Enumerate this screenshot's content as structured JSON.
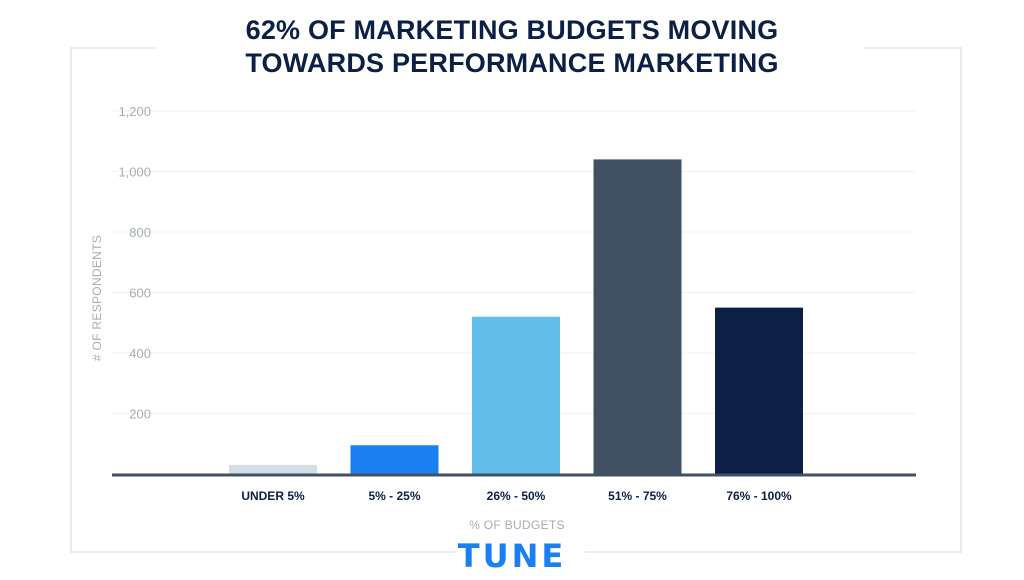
{
  "title_lines": [
    "62% OF MARKETING BUDGETS MOVING",
    "TOWARDS PERFORMANCE MARKETING"
  ],
  "logo": {
    "text": "TUNE",
    "color": "#1a7ff0"
  },
  "chart_data": {
    "type": "bar",
    "title": "62% OF MARKETING BUDGETS MOVING TOWARDS PERFORMANCE MARKETING",
    "xlabel": "% OF BUDGETS",
    "ylabel": "# OF RESPONDENTS",
    "categories": [
      "UNDER 5%",
      "5% - 25%",
      "26% - 50%",
      "51% - 75%",
      "76% - 100%"
    ],
    "values": [
      30,
      95,
      520,
      1040,
      550
    ],
    "colors": [
      "#d3dfe3",
      "#1a7ff0",
      "#62bde8",
      "#3f5163",
      "#0c1f45"
    ],
    "ylim": [
      0,
      1200
    ],
    "yticks": [
      200,
      400,
      600,
      800,
      1000,
      1200
    ],
    "ytick_labels": [
      "200",
      "400",
      "600",
      "800",
      "1,000",
      "1,200"
    ],
    "grid": true,
    "axis_color": "#3f5163",
    "grid_color": "#eef2f4"
  }
}
